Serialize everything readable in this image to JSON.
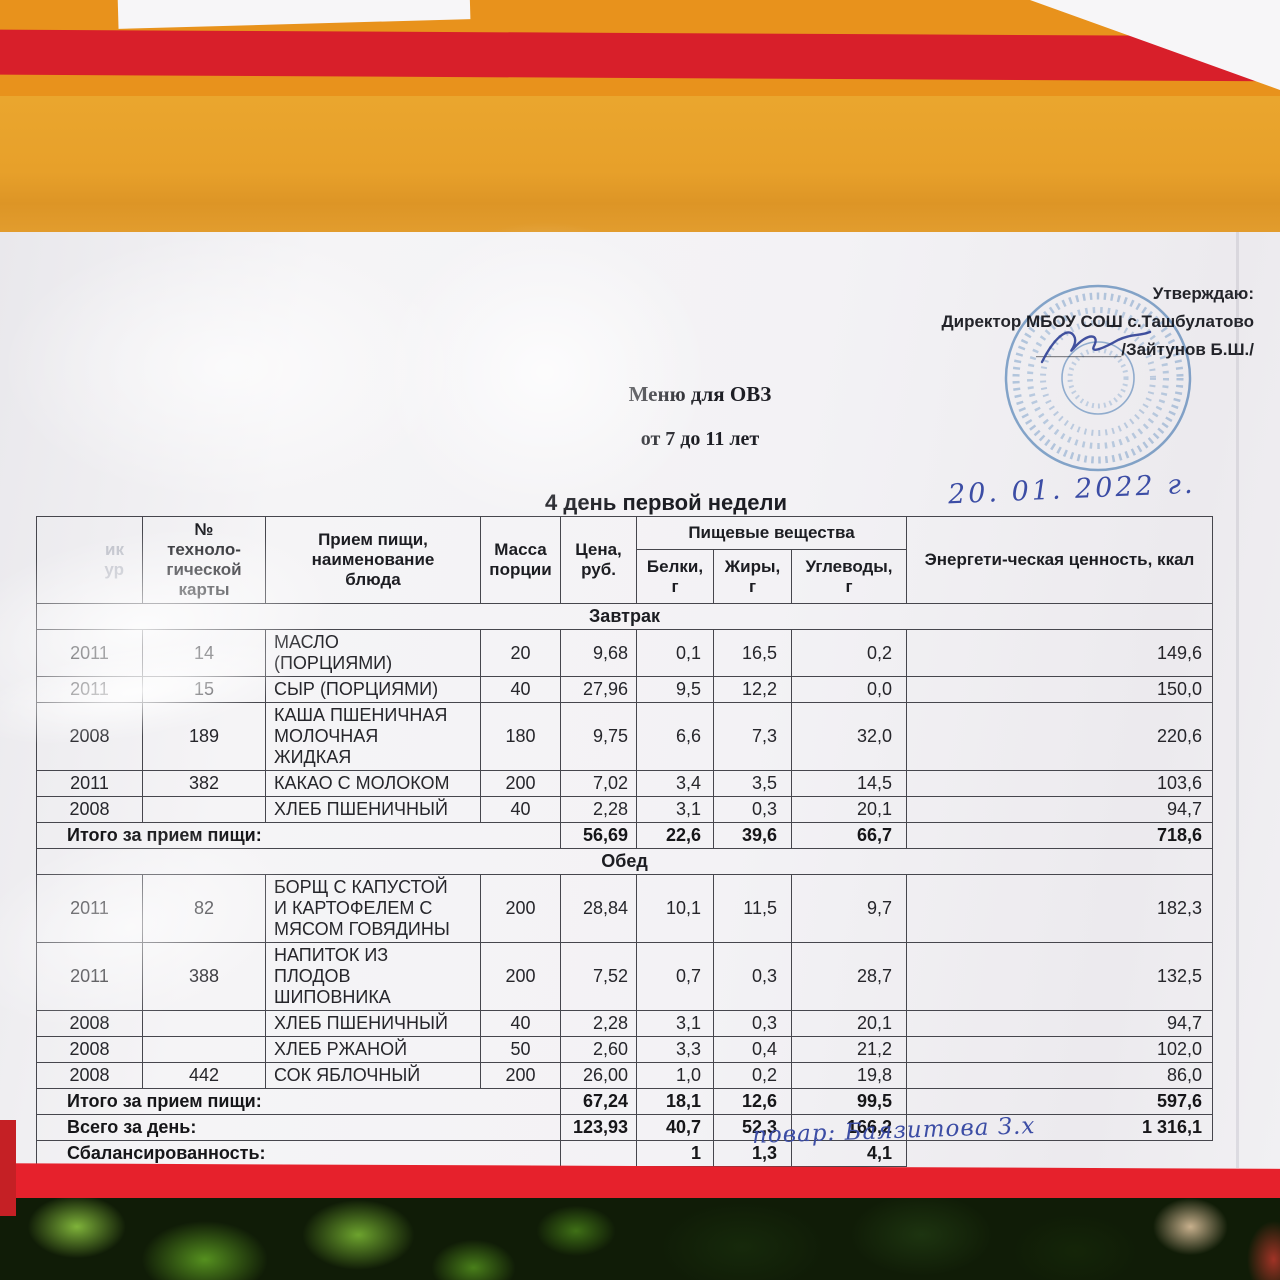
{
  "approval": {
    "line1": "Утверждаю:",
    "line2": "Директор МБОУ СОШ с.Ташбулатово",
    "line3": "_________/Зайтунов Б.Ш./"
  },
  "titles": {
    "menu": "Меню для ОВЗ",
    "age": "от 7 до 11 лет",
    "day": "4 день первой недели"
  },
  "handwritten": {
    "date": "20. 01. 2022 г.",
    "cook": "повар: Баязитова З.х"
  },
  "table": {
    "headers": {
      "recipe_partial": "ик\nур",
      "card": "№\nтехноло-\nгической\nкарты",
      "dish": "Прием пищи,\nнаименование\nблюда",
      "mass": "Масса\nпорции",
      "price": "Цена,\nруб.",
      "nutrients_group": "Пищевые вещества",
      "protein": "Белки,\nг",
      "fat": "Жиры,\nг",
      "carbs": "Углеводы,\nг",
      "energy": "Энергети-ческая ценность, ккал"
    },
    "sections": [
      {
        "name": "Завтрак",
        "rows": [
          [
            "2011",
            "14",
            "МАСЛО\n(ПОРЦИЯМИ)",
            "20",
            "9,68",
            "0,1",
            "16,5",
            "0,2",
            "149,6"
          ],
          [
            "2011",
            "15",
            "СЫР (ПОРЦИЯМИ)",
            "40",
            "27,96",
            "9,5",
            "12,2",
            "0,0",
            "150,0"
          ],
          [
            "2008",
            "189",
            "КАША ПШЕНИЧНАЯ\nМОЛОЧНАЯ\nЖИДКАЯ",
            "180",
            "9,75",
            "6,6",
            "7,3",
            "32,0",
            "220,6"
          ],
          [
            "2011",
            "382",
            "КАКАО С МОЛОКОМ",
            "200",
            "7,02",
            "3,4",
            "3,5",
            "14,5",
            "103,6"
          ],
          [
            "2008",
            "",
            "ХЛЕБ ПШЕНИЧНЫЙ",
            "40",
            "2,28",
            "3,1",
            "0,3",
            "20,1",
            "94,7"
          ]
        ],
        "total": {
          "label": "Итого за прием пищи:",
          "values": [
            "56,69",
            "22,6",
            "39,6",
            "66,7",
            "718,6"
          ]
        }
      },
      {
        "name": "Обед",
        "rows": [
          [
            "2011",
            "82",
            "БОРЩ С КАПУСТОЙ\nИ КАРТОФЕЛЕМ С\nМЯСОМ ГОВЯДИНЫ",
            "200",
            "28,84",
            "10,1",
            "11,5",
            "9,7",
            "182,3"
          ],
          [
            "2011",
            "388",
            "НАПИТОК ИЗ\nПЛОДОВ\nШИПОВНИКА",
            "200",
            "7,52",
            "0,7",
            "0,3",
            "28,7",
            "132,5"
          ],
          [
            "2008",
            "",
            "ХЛЕБ ПШЕНИЧНЫЙ",
            "40",
            "2,28",
            "3,1",
            "0,3",
            "20,1",
            "94,7"
          ],
          [
            "2008",
            "",
            "ХЛЕБ РЖАНОЙ",
            "50",
            "2,60",
            "3,3",
            "0,4",
            "21,2",
            "102,0"
          ],
          [
            "2008",
            "442",
            "СОК ЯБЛОЧНЫЙ",
            "200",
            "26,00",
            "1,0",
            "0,2",
            "19,8",
            "86,0"
          ]
        ],
        "total": {
          "label": "Итого за прием пищи:",
          "values": [
            "67,24",
            "18,1",
            "12,6",
            "99,5",
            "597,6"
          ]
        }
      }
    ],
    "day_total": {
      "label": "Всего за день:",
      "values": [
        "123,93",
        "40,7",
        "52,3",
        "166,2",
        "1 316,1"
      ]
    },
    "balance": {
      "label": "Сбалансированность:",
      "values": [
        "",
        "1",
        "1,3",
        "4,1"
      ]
    }
  }
}
